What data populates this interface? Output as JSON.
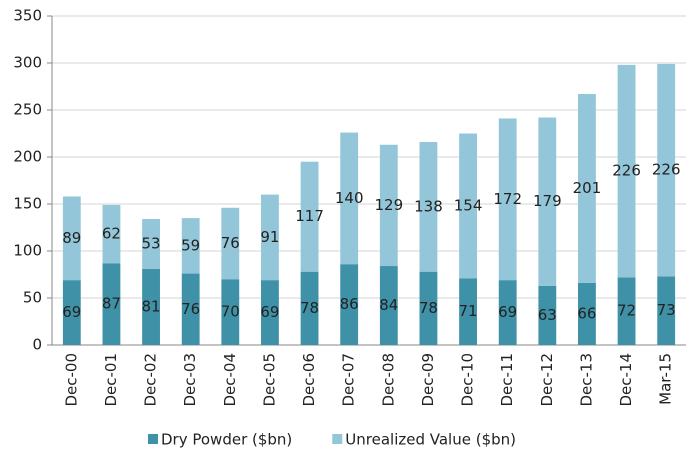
{
  "chart_data": {
    "type": "bar",
    "stacked": true,
    "categories": [
      "Dec-00",
      "Dec-01",
      "Dec-02",
      "Dec-03",
      "Dec-04",
      "Dec-05",
      "Dec-06",
      "Dec-07",
      "Dec-08",
      "Dec-09",
      "Dec-10",
      "Dec-11",
      "Dec-12",
      "Dec-13",
      "Dec-14",
      "Mar-15"
    ],
    "series": [
      {
        "name": "Dry Powder ($bn)",
        "color": "#3f91a8",
        "values": [
          69,
          87,
          81,
          76,
          70,
          69,
          78,
          86,
          84,
          78,
          71,
          69,
          63,
          66,
          72,
          73
        ]
      },
      {
        "name": "Unrealized Value ($bn)",
        "color": "#93c6d8",
        "values": [
          89,
          62,
          53,
          59,
          76,
          91,
          117,
          140,
          129,
          138,
          154,
          172,
          179,
          201,
          226,
          226
        ]
      }
    ],
    "ylim": [
      0,
      350
    ],
    "yticks": [
      0,
      50,
      100,
      150,
      200,
      250,
      300,
      350
    ],
    "grid": true,
    "legend": "bottom"
  }
}
